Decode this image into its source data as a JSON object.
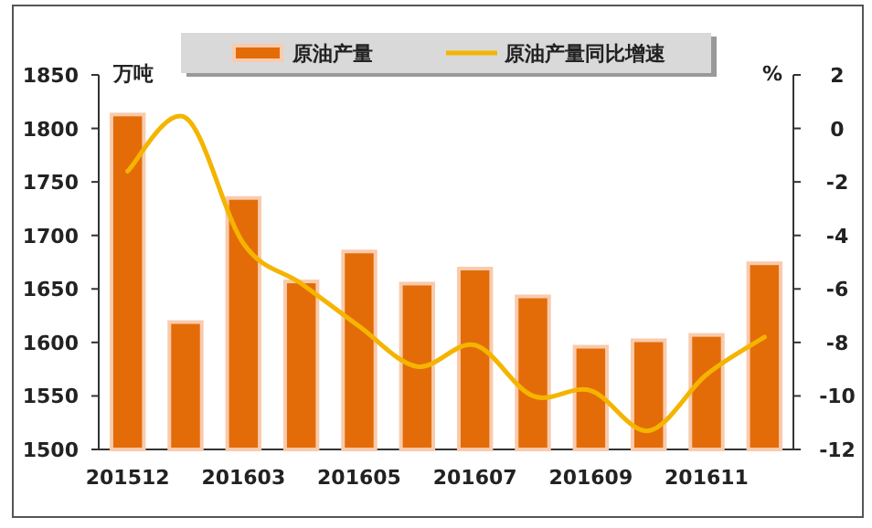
{
  "chart_data": {
    "type": "bar",
    "categories": [
      "201512",
      null,
      "201603",
      null,
      "201605",
      null,
      "201607",
      null,
      "201609",
      null,
      "201611",
      null
    ],
    "series": [
      {
        "name": "原油产量",
        "color": "#e36c09",
        "values": [
          1813,
          1619,
          1735,
          1657,
          1685,
          1655,
          1669,
          1643,
          1596,
          1602,
          1607,
          1674
        ]
      },
      {
        "name": "原油产量同比增速",
        "type": "line",
        "axis": "y2",
        "color": "#f4b400",
        "values": [
          -1.6,
          0.4,
          -4.3,
          -5.8,
          -7.4,
          -8.9,
          -8.1,
          -10.0,
          -9.8,
          -11.3,
          -9.2,
          -7.8
        ]
      }
    ],
    "ylabel": "万吨",
    "y2label": "%",
    "ylim": [
      1500,
      1850
    ],
    "yticks": [
      1500,
      1550,
      1600,
      1650,
      1700,
      1750,
      1800,
      1850
    ],
    "y2lim": [
      -12,
      2
    ],
    "y2ticks": [
      -12,
      -10,
      -8,
      -6,
      -4,
      -2,
      0,
      2
    ],
    "legend": "top"
  }
}
